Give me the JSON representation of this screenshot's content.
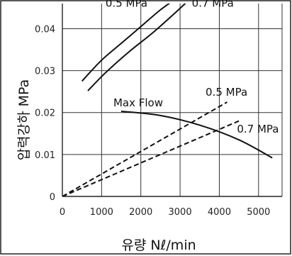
{
  "chart_data": {
    "type": "line",
    "title": "",
    "xlabel": "유량 Nℓ/min",
    "ylabel": "압력강하 MPa",
    "xlim": [
      0,
      5600
    ],
    "ylim": [
      0,
      0.046
    ],
    "grid": true,
    "x_ticks": [
      "0",
      "1000",
      "2000",
      "3000",
      "4000",
      "5000"
    ],
    "y_ticks": [
      "0",
      "0.01",
      "0.02",
      "0.03",
      "0.04"
    ],
    "series": [
      {
        "name": "0.5 MPa",
        "style": "solid",
        "x": [
          500,
          1000,
          1500,
          2000,
          2500,
          2950
        ],
        "y": [
          0.0275,
          0.0325,
          0.0365,
          0.0405,
          0.0445,
          0.0475
        ]
      },
      {
        "name": "0.7 MPa",
        "style": "solid",
        "x": [
          650,
          1100,
          1700,
          2300,
          2900,
          3300
        ],
        "y": [
          0.0252,
          0.0295,
          0.0345,
          0.039,
          0.044,
          0.0475
        ]
      },
      {
        "name": "Max Flow",
        "style": "solid",
        "x": [
          1500,
          2500,
          3500,
          4500,
          5350
        ],
        "y": [
          0.0203,
          0.0193,
          0.017,
          0.0135,
          0.0092
        ]
      },
      {
        "name": "0.5 MPa",
        "style": "dashed",
        "x": [
          0,
          4200
        ],
        "y": [
          0,
          0.0225
        ]
      },
      {
        "name": "0.7 MPa",
        "style": "dashed",
        "x": [
          0,
          4500
        ],
        "y": [
          0,
          0.018
        ]
      }
    ]
  }
}
